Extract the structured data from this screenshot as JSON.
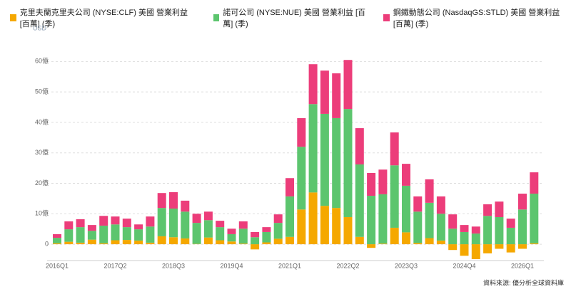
{
  "chart_data": {
    "type": "stacked_bar",
    "unit_label": "USD",
    "source": "資料來源: 優分析全球資料庫",
    "categories": [
      "2016Q1",
      null,
      null,
      null,
      null,
      "2017Q2",
      null,
      null,
      null,
      null,
      "2018Q3",
      null,
      null,
      null,
      null,
      "2019Q4",
      null,
      null,
      null,
      null,
      "2021Q1",
      null,
      null,
      null,
      null,
      "2022Q2",
      null,
      null,
      null,
      null,
      "2023Q3",
      null,
      null,
      null,
      null,
      "2024Q4",
      null,
      null,
      null,
      null,
      "2026Q1",
      null
    ],
    "series": [
      {
        "name": "克里夫蘭克里夫公司 (NYSE:CLF) 美國 營業利益 [百萬] (季)",
        "color": "#f5a800",
        "values": [
          0.3,
          0.8,
          0.5,
          1.5,
          0.3,
          1.3,
          1.4,
          1.2,
          0.5,
          2.6,
          2.3,
          1.9,
          0.1,
          2.2,
          1.3,
          0.9,
          0.2,
          -1.7,
          0.6,
          1.8,
          2.4,
          11.4,
          17.0,
          12.6,
          11.9,
          8.9,
          2.4,
          -1.2,
          0.2,
          5.4,
          3.9,
          0.4,
          2.0,
          1.2,
          -1.9,
          -3.8,
          -4.9,
          -3.0,
          -1.5,
          -2.7,
          -1.5,
          0.3
        ]
      },
      {
        "name": "諾可公司 (NYSE:NUE) 美國 營業利益 [百萬] (季)",
        "color": "#5cc56e",
        "values": [
          1.8,
          4.1,
          5.1,
          2.9,
          5.8,
          5.2,
          4.2,
          3.7,
          5.3,
          9.3,
          9.4,
          8.8,
          6.9,
          5.7,
          4.3,
          2.4,
          4.9,
          2.3,
          3.4,
          5.2,
          13.3,
          20.6,
          29.0,
          30.2,
          29.5,
          35.5,
          23.8,
          15.9,
          16.2,
          20.5,
          15.3,
          10.3,
          11.6,
          8.8,
          5.1,
          4.0,
          3.5,
          9.3,
          8.9,
          5.4,
          11.4,
          16.3
        ]
      },
      {
        "name": "鋼鐵動態公司 (NasdaqGS:STLD) 美國 營業利益 [百萬] (季)",
        "color": "#ec3d7a",
        "values": [
          1.2,
          2.6,
          2.6,
          1.9,
          3.2,
          2.6,
          2.8,
          1.6,
          3.3,
          4.9,
          5.4,
          3.6,
          3.0,
          2.8,
          2.1,
          1.8,
          2.4,
          1.7,
          1.6,
          2.8,
          6.0,
          9.4,
          13.1,
          14.2,
          14.7,
          16.1,
          11.9,
          7.5,
          8.1,
          10.8,
          7.2,
          5.0,
          7.7,
          5.7,
          4.7,
          2.3,
          2.3,
          3.8,
          5.1,
          3.0,
          5.2,
          7.0
        ]
      }
    ],
    "ylim": [
      -5.5,
      67
    ],
    "yticks": [
      0,
      {
        "value": 10,
        "label": "10億"
      },
      {
        "value": 20,
        "label": "20億"
      },
      {
        "value": 30,
        "label": "30億"
      },
      {
        "value": 40,
        "label": "40億"
      },
      {
        "value": 50,
        "label": "50億"
      },
      {
        "value": 60,
        "label": "60億"
      }
    ],
    "grid": true
  }
}
